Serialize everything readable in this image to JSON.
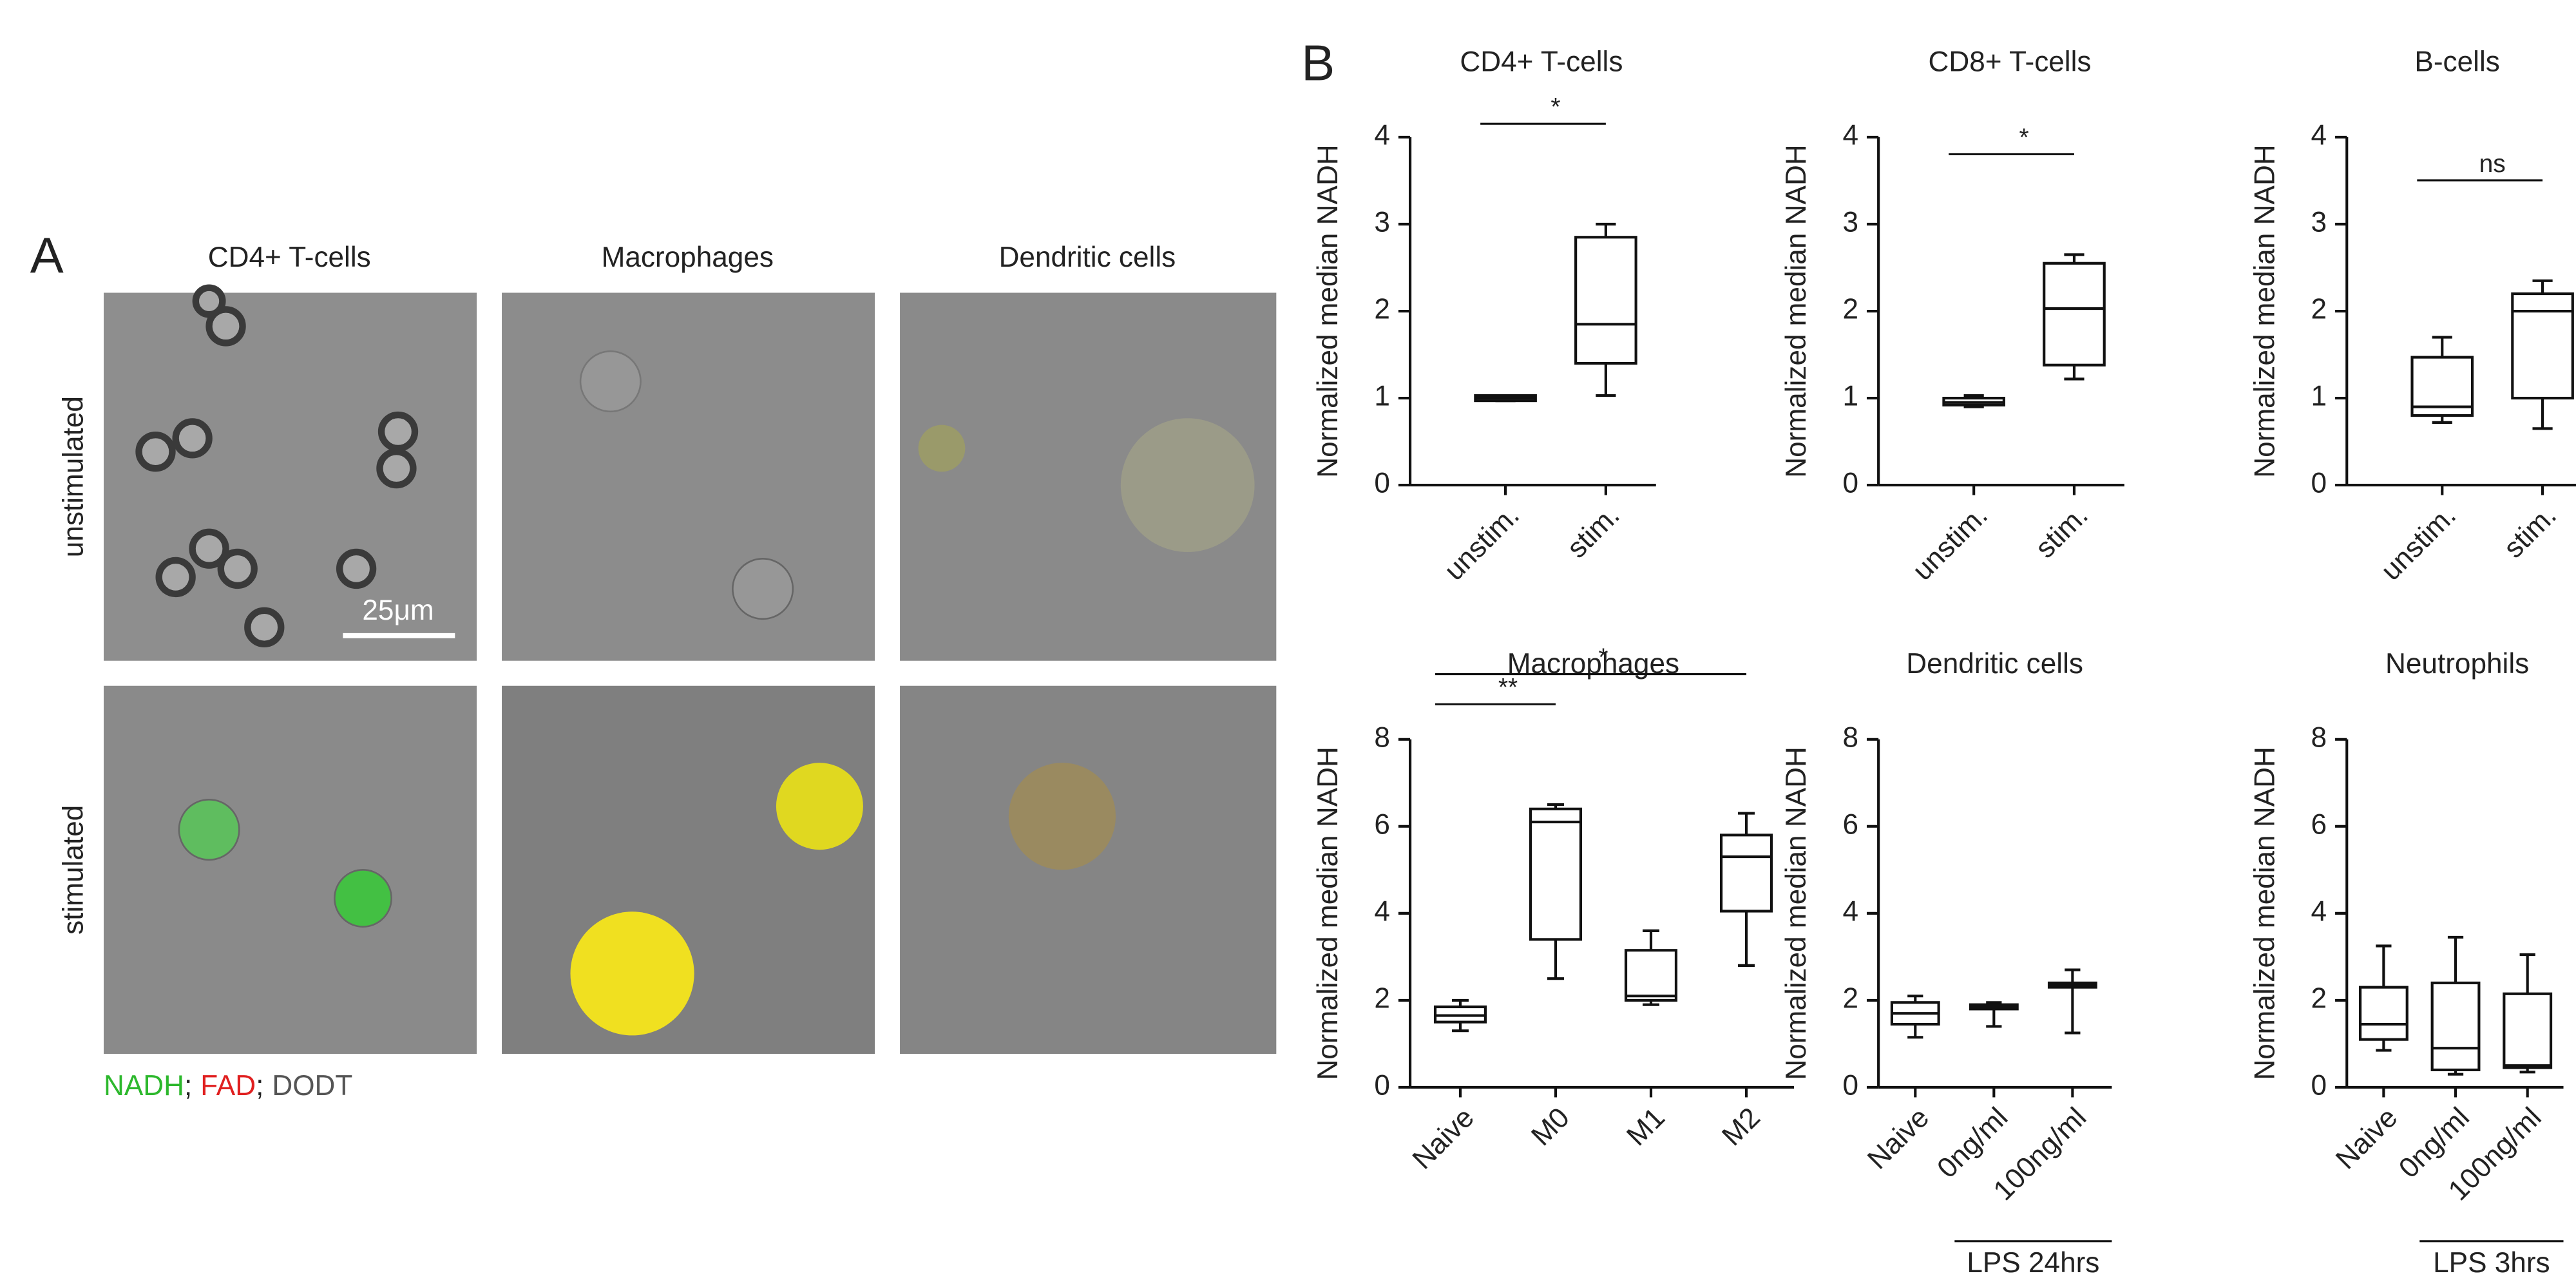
{
  "panel_a": {
    "label": "A",
    "columns": [
      "CD4+ T-cells",
      "Macrophages",
      "Dendritic cells"
    ],
    "rows": [
      "unstimulated",
      "stimulated"
    ],
    "scale_bar": "25μm",
    "legend": {
      "items": [
        {
          "text": "NADH",
          "color": "#2db82d"
        },
        {
          "text": "FAD",
          "color": "#e02020"
        },
        {
          "text": "DODT",
          "color": "#555555"
        }
      ],
      "separator": ";"
    }
  },
  "panel_b": {
    "label": "B"
  },
  "chart_data": [
    {
      "type": "box",
      "title": "CD4+ T-cells",
      "ylabel": "Normalized median NADH",
      "categories": [
        "unstim.",
        "stim."
      ],
      "boxes": [
        {
          "min": 0.97,
          "q1": 0.97,
          "median": 1.0,
          "q3": 1.03,
          "max": 1.03
        },
        {
          "min": 1.03,
          "q1": 1.4,
          "median": 1.85,
          "q3": 2.85,
          "max": 3.0
        }
      ],
      "ylim": [
        0,
        4
      ],
      "yticks": [
        0,
        1,
        2,
        3,
        4
      ],
      "annotations": [
        {
          "text": "*",
          "between": [
            "unstim.",
            "stim."
          ]
        }
      ]
    },
    {
      "type": "box",
      "title": "CD8+ T-cells",
      "ylabel": "Normalized median NADH",
      "categories": [
        "unstim.",
        "stim."
      ],
      "boxes": [
        {
          "min": 0.9,
          "q1": 0.92,
          "median": 0.95,
          "q3": 1.0,
          "max": 1.03
        },
        {
          "min": 1.22,
          "q1": 1.38,
          "median": 2.03,
          "q3": 2.55,
          "max": 2.65
        }
      ],
      "ylim": [
        0,
        4
      ],
      "yticks": [
        0,
        1,
        2,
        3,
        4
      ],
      "annotations": [
        {
          "text": "*",
          "between": [
            "unstim.",
            "stim."
          ]
        }
      ]
    },
    {
      "type": "box",
      "title": "B-cells",
      "ylabel": "Normalized median NADH",
      "categories": [
        "unstim.",
        "stim."
      ],
      "boxes": [
        {
          "min": 0.72,
          "q1": 0.8,
          "median": 0.9,
          "q3": 1.47,
          "max": 1.7
        },
        {
          "min": 0.65,
          "q1": 1.0,
          "median": 2.0,
          "q3": 2.2,
          "max": 2.35
        }
      ],
      "ylim": [
        0,
        4
      ],
      "yticks": [
        0,
        1,
        2,
        3,
        4
      ],
      "annotations": [
        {
          "text": "ns",
          "between": [
            "unstim.",
            "stim."
          ]
        }
      ]
    },
    {
      "type": "box",
      "title": "Macrophages",
      "ylabel": "Normalized median NADH",
      "categories": [
        "Naive",
        "M0",
        "M1",
        "M2"
      ],
      "boxes": [
        {
          "min": 1.3,
          "q1": 1.5,
          "median": 1.65,
          "q3": 1.85,
          "max": 2.0
        },
        {
          "min": 2.5,
          "q1": 3.4,
          "median": 6.1,
          "q3": 6.4,
          "max": 6.5
        },
        {
          "min": 1.9,
          "q1": 2.0,
          "median": 2.1,
          "q3": 3.15,
          "max": 3.6
        },
        {
          "min": 2.8,
          "q1": 4.05,
          "median": 5.3,
          "q3": 5.8,
          "max": 6.3
        }
      ],
      "ylim": [
        0,
        8
      ],
      "yticks": [
        0,
        2,
        4,
        6,
        8
      ],
      "annotations": [
        {
          "text": "**",
          "between": [
            "Naive",
            "M0"
          ]
        },
        {
          "text": "*",
          "between": [
            "Naive",
            "M2"
          ]
        }
      ]
    },
    {
      "type": "box",
      "title": "Dendritic cells",
      "ylabel": "Normalized median NADH",
      "categories": [
        "Naive",
        "0ng/ml",
        "100ng/ml"
      ],
      "boxes": [
        {
          "min": 1.15,
          "q1": 1.45,
          "median": 1.7,
          "q3": 1.95,
          "max": 2.1
        },
        {
          "min": 1.4,
          "q1": 1.8,
          "median": 1.85,
          "q3": 1.9,
          "max": 1.95
        },
        {
          "min": 1.25,
          "q1": 2.3,
          "median": 2.35,
          "q3": 2.4,
          "max": 2.7
        }
      ],
      "ylim": [
        0,
        8
      ],
      "yticks": [
        0,
        2,
        4,
        6,
        8
      ],
      "group_labels": [
        {
          "text": "LPS 24hrs",
          "categories": [
            "0ng/ml",
            "100ng/ml"
          ]
        }
      ]
    },
    {
      "type": "box",
      "title": "Neutrophils",
      "ylabel": "Normalized median NADH",
      "categories": [
        "Naive",
        "0ng/ml",
        "100ng/ml"
      ],
      "boxes": [
        {
          "min": 0.85,
          "q1": 1.1,
          "median": 1.45,
          "q3": 2.3,
          "max": 3.25
        },
        {
          "min": 0.3,
          "q1": 0.4,
          "median": 0.9,
          "q3": 2.4,
          "max": 3.45
        },
        {
          "min": 0.35,
          "q1": 0.45,
          "median": 0.5,
          "q3": 2.15,
          "max": 3.05
        }
      ],
      "ylim": [
        0,
        8
      ],
      "yticks": [
        0,
        2,
        4,
        6,
        8
      ],
      "group_labels": [
        {
          "text": "LPS 3hrs",
          "categories": [
            "0ng/ml",
            "100ng/ml"
          ]
        }
      ]
    }
  ]
}
